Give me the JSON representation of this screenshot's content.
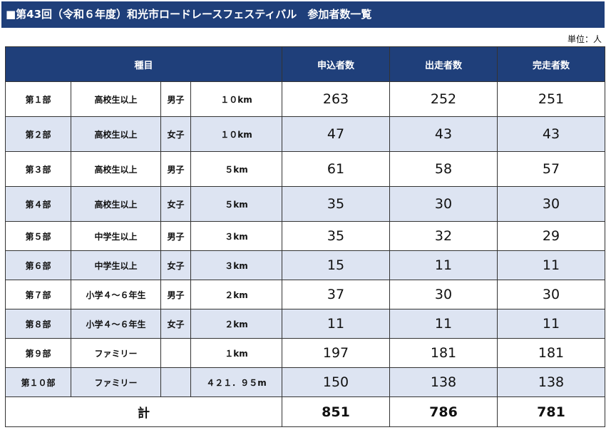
{
  "title": "■第43回（令和６年度）和光市ロードレースフェスティバル　参加者数一覧",
  "unit": "単位：人",
  "headers": {
    "category": "種目",
    "applied": "申込者数",
    "started": "出走者数",
    "finished": "完走者数"
  },
  "rows": [
    {
      "part": "第１部",
      "category": "高校生以上",
      "sex": "男子",
      "distance": "１０km",
      "applied": "263",
      "started": "252",
      "finished": "251"
    },
    {
      "part": "第２部",
      "category": "高校生以上",
      "sex": "女子",
      "distance": "１０km",
      "applied": "47",
      "started": "43",
      "finished": "43"
    },
    {
      "part": "第３部",
      "category": "高校生以上",
      "sex": "男子",
      "distance": "５km",
      "applied": "61",
      "started": "58",
      "finished": "57"
    },
    {
      "part": "第４部",
      "category": "高校生以上",
      "sex": "女子",
      "distance": "５km",
      "applied": "35",
      "started": "30",
      "finished": "30"
    },
    {
      "part": "第５部",
      "category": "中学生以上",
      "sex": "男子",
      "distance": "３km",
      "applied": "35",
      "started": "32",
      "finished": "29"
    },
    {
      "part": "第６部",
      "category": "中学生以上",
      "sex": "女子",
      "distance": "３km",
      "applied": "15",
      "started": "11",
      "finished": "11"
    },
    {
      "part": "第７部",
      "category": "小学４～６年生",
      "sex": "男子",
      "distance": "２km",
      "applied": "37",
      "started": "30",
      "finished": "30"
    },
    {
      "part": "第８部",
      "category": "小学４～６年生",
      "sex": "女子",
      "distance": "２km",
      "applied": "11",
      "started": "11",
      "finished": "11"
    },
    {
      "part": "第９部",
      "category": "ファミリー",
      "sex": "",
      "distance": "１km",
      "applied": "197",
      "started": "181",
      "finished": "181"
    },
    {
      "part": "第１０部",
      "category": "ファミリー",
      "sex": "",
      "distance": "４２１．９５m",
      "applied": "150",
      "started": "138",
      "finished": "138"
    }
  ],
  "total": {
    "label": "計",
    "applied": "851",
    "started": "786",
    "finished": "781"
  }
}
